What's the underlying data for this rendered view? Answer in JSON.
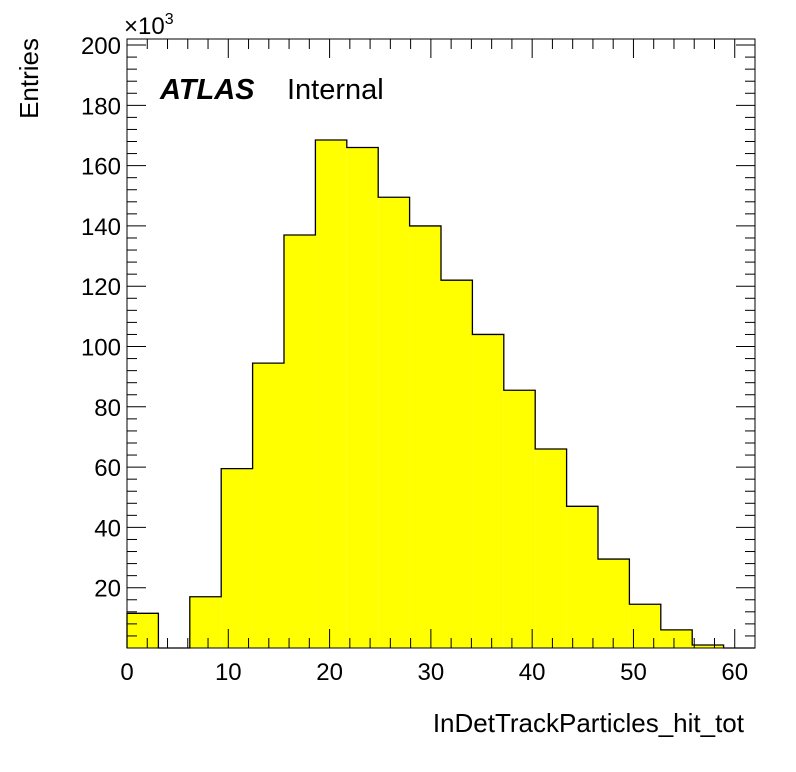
{
  "chart_data": {
    "type": "bar",
    "style": "histogram",
    "fill_color": "#ffff00",
    "line_color": "#000000",
    "xlabel": "InDetTrackParticles_hit_tot",
    "ylabel": "Entries",
    "xlim": [
      0,
      62
    ],
    "ylim": [
      0,
      202
    ],
    "y_multiplier": "×10",
    "y_multiplier_exp": "3",
    "bin_edges": [
      0,
      3.1,
      6.2,
      9.3,
      12.4,
      15.5,
      18.6,
      21.7,
      24.8,
      27.9,
      31,
      34.1,
      37.2,
      40.3,
      43.4,
      46.5,
      49.6,
      52.7,
      55.8,
      58.9,
      62
    ],
    "values": [
      11.5,
      0,
      17,
      59.5,
      94.5,
      137,
      168.5,
      166,
      149.5,
      140,
      122,
      104,
      85.5,
      66,
      47,
      29.5,
      14.5,
      6,
      1,
      0
    ],
    "x_ticks": [
      "0",
      "10",
      "20",
      "30",
      "40",
      "50",
      "60"
    ],
    "y_ticks": [
      "20",
      "40",
      "60",
      "80",
      "100",
      "120",
      "140",
      "160",
      "180",
      "200"
    ],
    "label_main": "ATLAS",
    "label_sub": "Internal"
  }
}
